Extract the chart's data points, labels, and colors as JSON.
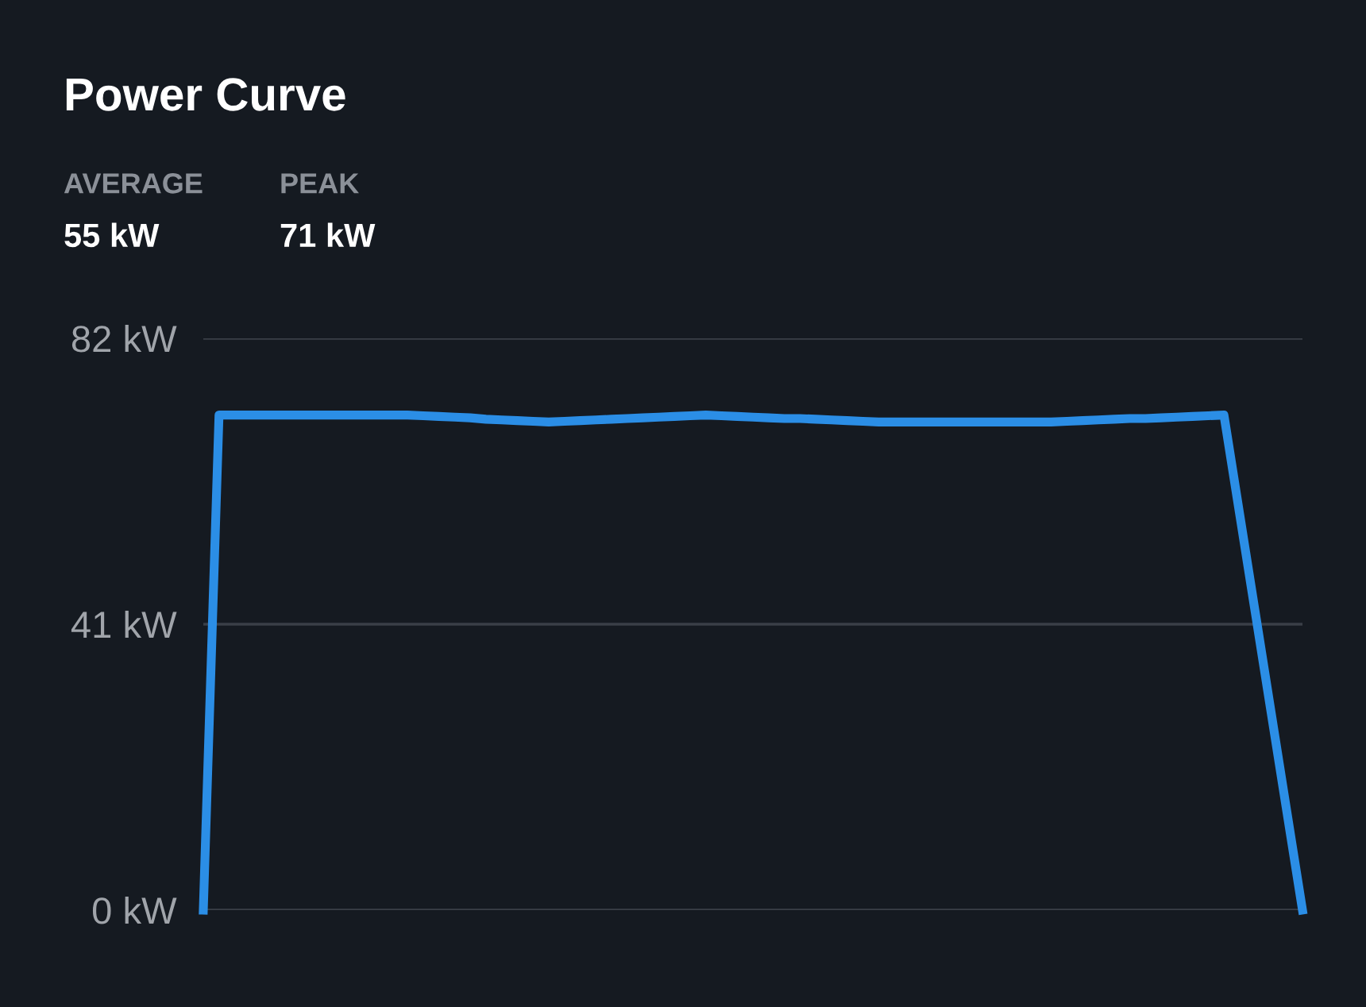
{
  "chart_data": {
    "type": "line",
    "title": "Power Curve",
    "annotations": [
      "AVERAGE",
      "55 kW",
      "PEAK",
      "71 kW"
    ],
    "categories": [
      null,
      null,
      null,
      null,
      null,
      null,
      null,
      null,
      null,
      null,
      null,
      null,
      null,
      null,
      null,
      null,
      null,
      null,
      null,
      null,
      null,
      null,
      null,
      null,
      null,
      null,
      null,
      null,
      null,
      null,
      null,
      null,
      null,
      null,
      null,
      null,
      null,
      null,
      null,
      null,
      null,
      null,
      null,
      null,
      null,
      null,
      null,
      null,
      null,
      null,
      null,
      null,
      null,
      null,
      null,
      null,
      null,
      null,
      null,
      null,
      null,
      null,
      null,
      null,
      null,
      null,
      null,
      null,
      null,
      null,
      null
    ],
    "series": [
      {
        "color": "#2b8ee6",
        "values": [
          0,
          71,
          71,
          71,
          71,
          71,
          71,
          71,
          71,
          71,
          71,
          71,
          71,
          71,
          70.9,
          70.8,
          70.7,
          70.6,
          70.4,
          70.3,
          70.2,
          70.1,
          70,
          70.1,
          70.2,
          70.3,
          70.4,
          70.5,
          70.6,
          70.7,
          70.8,
          70.9,
          71,
          70.9,
          70.8,
          70.7,
          70.6,
          70.5,
          70.5,
          70.4,
          70.3,
          70.2,
          70.1,
          70,
          70,
          70,
          70,
          70,
          70,
          70,
          70,
          70,
          70,
          70,
          70,
          70.1,
          70.2,
          70.3,
          70.4,
          70.5,
          70.5,
          70.6,
          70.7,
          70.8,
          70.9,
          71,
          56.8,
          42.6,
          28.4,
          14.2,
          0
        ]
      }
    ],
    "ylim": [
      0,
      82
    ],
    "yticks": [
      {
        "value": 0,
        "label": "0 kW"
      },
      {
        "value": 41,
        "label": "41 kW"
      },
      {
        "value": 82,
        "label": "82 kW"
      }
    ],
    "grid": "y",
    "tick_labels": "y",
    "marker": "none",
    "line_style": "solid"
  }
}
